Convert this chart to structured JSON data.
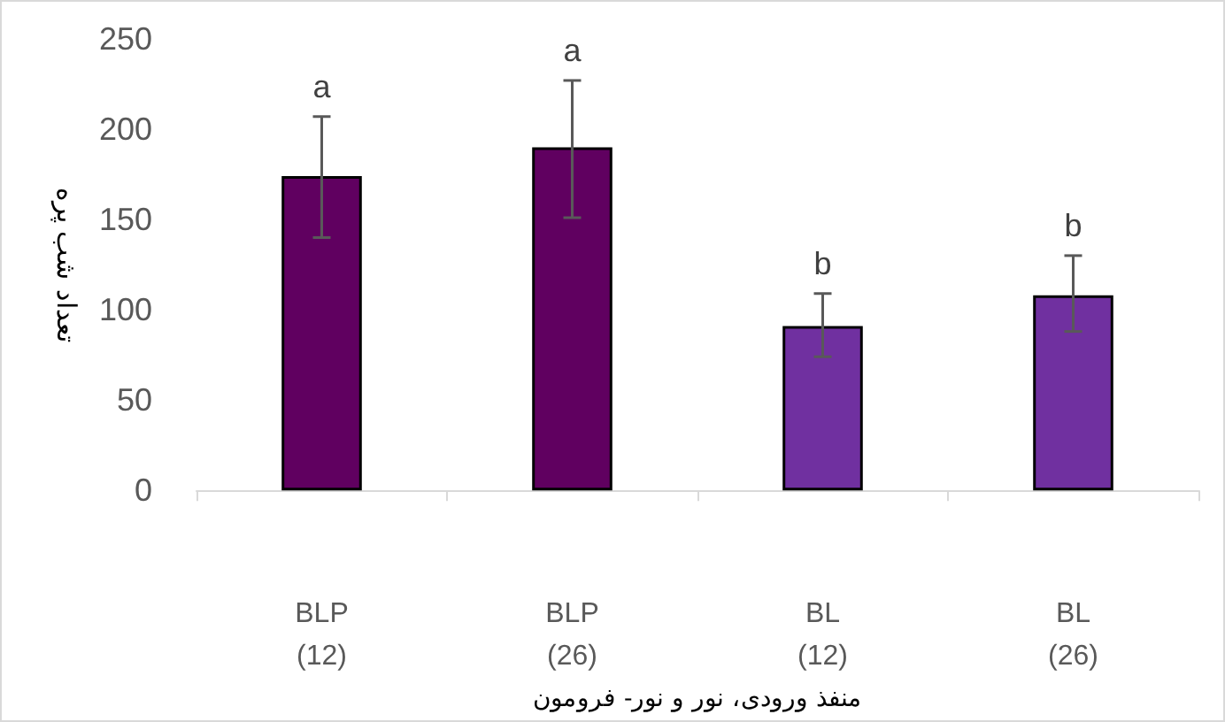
{
  "chart_data": {
    "type": "bar",
    "xlabel": "منفذ ورودی، نور و نور- فرومون",
    "ylabel": "تعداد شب پره",
    "categories": [
      "BLP\n(12)",
      "BLP\n(26)",
      "BL\n(12)",
      "BL\n(26)"
    ],
    "values": [
      174,
      190,
      91,
      108
    ],
    "colors": [
      "#600060",
      "#600060",
      "#7030a0",
      "#7030a0"
    ],
    "errors": [
      [
        140,
        207
      ],
      [
        151,
        227
      ],
      [
        74,
        109
      ],
      [
        88,
        130
      ]
    ],
    "ylim": [
      0,
      250
    ],
    "yticks": [
      0,
      50,
      100,
      150,
      200,
      250
    ],
    "annotations": [
      {
        "text": "a",
        "x": "BLP\n(12)",
        "y": 207
      },
      {
        "text": "a",
        "x": "BLP\n(26)",
        "y": 227
      },
      {
        "text": "b",
        "x": "BL\n(12)",
        "y": 109
      },
      {
        "text": "b",
        "x": "BL\n(26)",
        "y": 130
      }
    ]
  }
}
